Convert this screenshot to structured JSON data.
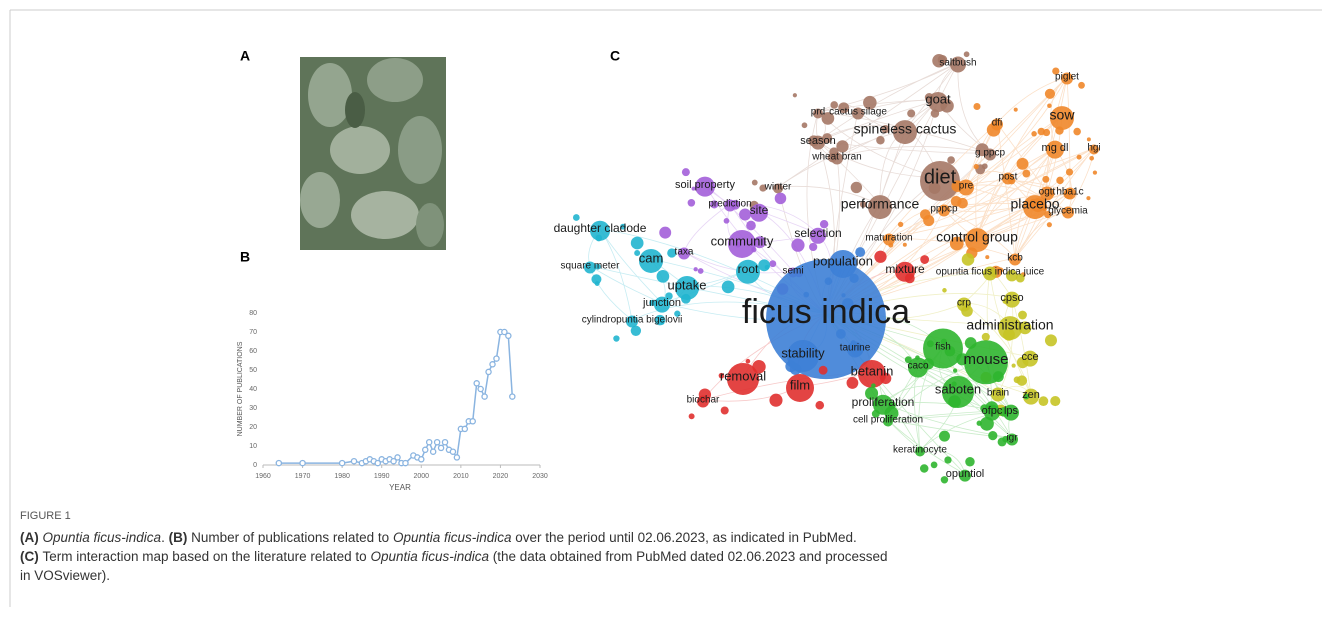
{
  "panels": {
    "a": "A",
    "b": "B",
    "c": "C"
  },
  "chart_data": {
    "type": "line",
    "x_label": "YEAR",
    "y_label": "NUMBER OF PUBLICATIONS",
    "color": "#8ab4e0",
    "x": [
      1964,
      1970,
      1980,
      1983,
      1985,
      1986,
      1987,
      1988,
      1989,
      1990,
      1991,
      1992,
      1993,
      1994,
      1995,
      1996,
      1998,
      1999,
      2000,
      2001,
      2002,
      2003,
      2004,
      2005,
      2006,
      2007,
      2008,
      2009,
      2010,
      2011,
      2012,
      2013,
      2014,
      2015,
      2016,
      2017,
      2018,
      2019,
      2020,
      2021,
      2022,
      2023
    ],
    "values": [
      1,
      1,
      1,
      2,
      1,
      2,
      3,
      2,
      1,
      3,
      2,
      3,
      2,
      4,
      1,
      1,
      5,
      4,
      3,
      8,
      12,
      7,
      12,
      9,
      12,
      8,
      7,
      4,
      19,
      19,
      23,
      23,
      43,
      40,
      36,
      49,
      53,
      56,
      70,
      70,
      68,
      36
    ],
    "xlim": [
      1960,
      2030
    ],
    "xticks": [
      1960,
      1970,
      1980,
      1990,
      2000,
      2010,
      2020,
      2030
    ],
    "ylim": [
      0,
      80
    ],
    "yticks": [
      0,
      10,
      20,
      30,
      40,
      50,
      60,
      70,
      80
    ]
  },
  "network": {
    "clusters": [
      {
        "color": "#a57866",
        "terms": [
          "saltbush",
          "goat",
          "cactus silage",
          "prd",
          "spineless cactus",
          "wheat bran",
          "season",
          "diet",
          "winter",
          "g ppcp",
          "performance"
        ]
      },
      {
        "color": "#f0872a",
        "terms": [
          "piglet",
          "sow",
          "dfi",
          "mg dl",
          "hgi",
          "post",
          "hba1c",
          "pre",
          "ogtt",
          "placebo",
          "glycemia",
          "pppcp",
          "control group",
          "kcb",
          "maturation"
        ]
      },
      {
        "color": "#a35fd9",
        "terms": [
          "soil property",
          "prediction",
          "site",
          "community",
          "selection",
          "taxa",
          "semi"
        ]
      },
      {
        "color": "#21b5cf",
        "terms": [
          "daughter cladode",
          "cam",
          "square meter",
          "root",
          "uptake",
          "junction",
          "cylindropuntia bigelovii"
        ]
      },
      {
        "color": "#3d80d6",
        "terms": [
          "population",
          "ficus indica",
          "stability",
          "taurine"
        ]
      },
      {
        "color": "#e0302f",
        "terms": [
          "removal",
          "film",
          "betanin",
          "biochar",
          "mixture"
        ]
      },
      {
        "color": "#c6c426",
        "terms": [
          "opuntia ficus indica juice",
          "crp",
          "cpso",
          "administration",
          "cce",
          "zen",
          "brain"
        ]
      },
      {
        "color": "#2fb52f",
        "terms": [
          "fish",
          "mouse",
          "caco",
          "saboten",
          "proliferation",
          "ofpc",
          "lps",
          "cell proliferation",
          "igr",
          "keratinocyte",
          "opuntiol"
        ]
      }
    ]
  },
  "caption": {
    "label": "FIGURE 1",
    "lines": [
      [
        {
          "text": "(A) ",
          "style": "bold"
        },
        {
          "text": "Opuntia ficus-indica",
          "style": "italic"
        },
        {
          "text": ". ",
          "style": "normal"
        },
        {
          "text": "(B) ",
          "style": "bold"
        },
        {
          "text": "Number of publications related to ",
          "style": "normal"
        },
        {
          "text": "Opuntia ficus-indica",
          "style": "italic"
        },
        {
          "text": " over the period until 02.06.2023, as indicated in PubMed.",
          "style": "normal"
        }
      ],
      [
        {
          "text": "(C) ",
          "style": "bold"
        },
        {
          "text": "Term interaction map based on the literature related to ",
          "style": "normal"
        },
        {
          "text": "Opuntia ficus-indica",
          "style": "italic"
        },
        {
          "text": " (the data obtained from PubMed dated 02.06.2023 and processed",
          "style": "normal"
        }
      ],
      [
        {
          "text": "in VOSviewer).",
          "style": "normal"
        }
      ]
    ]
  }
}
